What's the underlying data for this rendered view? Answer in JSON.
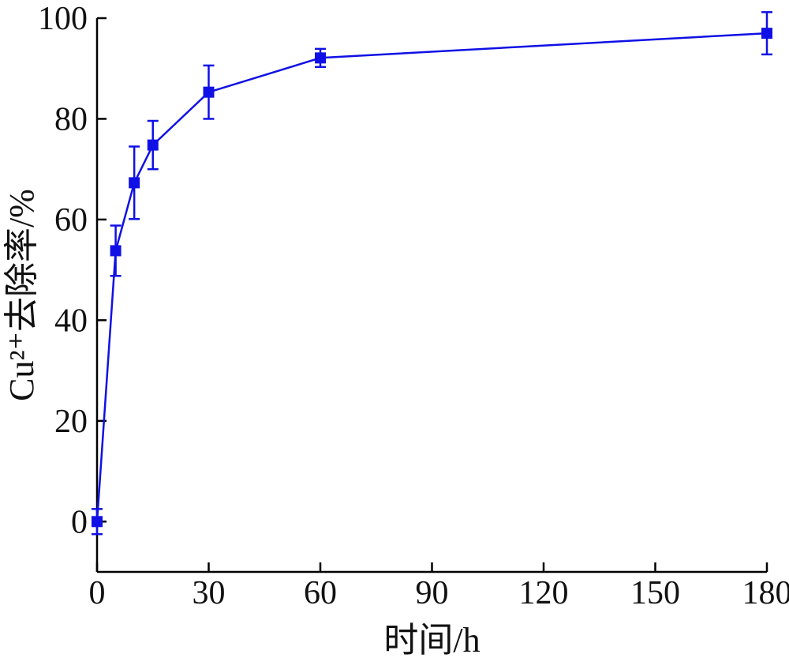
{
  "chart_data": {
    "type": "line",
    "xlabel": "时间/h",
    "ylabel": "Cu²⁺去除率/%",
    "xlim": [
      0,
      180
    ],
    "ylim": [
      -10,
      100
    ],
    "xticks": [
      0,
      30,
      60,
      90,
      120,
      150,
      180
    ],
    "xtick_labels": [
      "0",
      "30",
      "60",
      "90",
      "120",
      "150",
      "180"
    ],
    "yticks": [
      0,
      20,
      40,
      60,
      80,
      100
    ],
    "ytick_labels": [
      "0",
      "20",
      "40",
      "60",
      "80",
      "100"
    ],
    "grid": false,
    "colors": {
      "series": "#1010e6",
      "axis": "#000000"
    },
    "series": [
      {
        "x": [
          0,
          5,
          10,
          15,
          30,
          60,
          180
        ],
        "y": [
          0,
          53.8,
          67.3,
          74.8,
          85.3,
          92.1,
          97.0
        ],
        "error": [
          2.5,
          5.0,
          7.2,
          4.8,
          5.3,
          1.8,
          4.2
        ]
      }
    ]
  }
}
